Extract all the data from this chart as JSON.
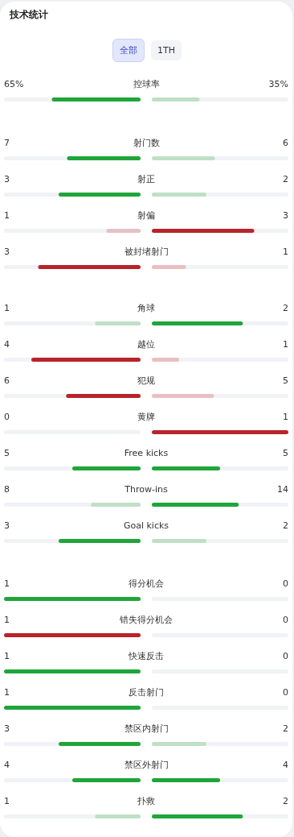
{
  "chart_data": [
    {
      "type": "other",
      "title": "技术统计",
      "annotations": [
        "全部",
        "1TH"
      ],
      "categories": [
        "控球率"
      ],
      "series": [
        {
          "values": [
            65
          ],
          "value_labels": [
            "65%"
          ],
          "colors": [
            "#1fa53a"
          ]
        },
        {
          "values": [
            35
          ],
          "value_labels": [
            "35%"
          ],
          "colors": [
            "#bfe0c6"
          ]
        }
      ]
    },
    {
      "type": "other",
      "data_labels": true,
      "categories": [
        "射门数",
        "射正",
        "射偏",
        "被封堵射门"
      ],
      "series": [
        {
          "values": [
            7,
            3,
            1,
            3
          ],
          "colors": [
            "#1fa53a",
            "#1fa53a",
            "#e8bfc3",
            "#b8242a"
          ]
        },
        {
          "values": [
            6,
            2,
            3,
            1
          ],
          "colors": [
            "#bfe0c6",
            "#bfe0c6",
            "#b8242a",
            "#e8bfc3"
          ]
        }
      ]
    },
    {
      "type": "other",
      "data_labels": true,
      "categories": [
        "角球",
        "越位",
        "犯规",
        "黄牌",
        "Free kicks",
        "Throw-ins",
        "Goal kicks"
      ],
      "series": [
        {
          "values": [
            1,
            4,
            6,
            0,
            5,
            8,
            3
          ],
          "colors": [
            "#bfe0c6",
            "#b8242a",
            "#b8242a",
            "#e8bfc3",
            "#1fa53a",
            "#bfe0c6",
            "#1fa53a"
          ]
        },
        {
          "values": [
            2,
            1,
            5,
            1,
            5,
            14,
            2
          ],
          "colors": [
            "#1fa53a",
            "#e8bfc3",
            "#e8bfc3",
            "#b8242a",
            "#1fa53a",
            "#1fa53a",
            "#bfe0c6"
          ]
        }
      ]
    },
    {
      "type": "other",
      "data_labels": true,
      "categories": [
        "得分机会",
        "错失得分机会",
        "快速反击",
        "反击射门",
        "禁区内射门",
        "禁区外射门",
        "扑救"
      ],
      "series": [
        {
          "values": [
            1,
            1,
            1,
            1,
            3,
            4,
            1
          ],
          "colors": [
            "#1fa53a",
            "#b8242a",
            "#1fa53a",
            "#1fa53a",
            "#1fa53a",
            "#1fa53a",
            "#bfe0c6"
          ]
        },
        {
          "values": [
            0,
            0,
            0,
            0,
            2,
            4,
            2
          ],
          "colors": [
            "#bfe0c6",
            "#e8bfc3",
            "#bfe0c6",
            "#bfe0c6",
            "#bfe0c6",
            "#1fa53a",
            "#1fa53a"
          ]
        }
      ]
    }
  ]
}
